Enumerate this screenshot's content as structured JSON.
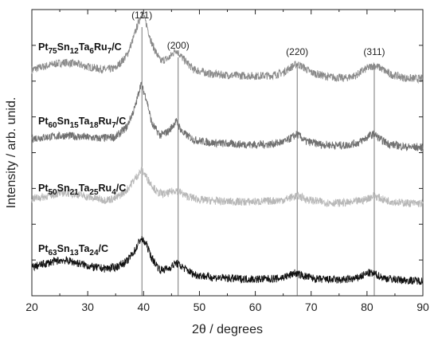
{
  "chart_data": {
    "type": "line",
    "xlabel": "2θ / degrees",
    "ylabel": "Intensity / arb. unid.",
    "xlim": [
      20,
      90
    ],
    "xticks": [
      20,
      30,
      40,
      50,
      60,
      70,
      80,
      90
    ],
    "grid": false,
    "reflections": [
      {
        "label": "(111)",
        "x": 39.7
      },
      {
        "label": "(200)",
        "x": 46.2
      },
      {
        "label": "(220)",
        "x": 67.5
      },
      {
        "label": "(311)",
        "x": 81.3
      }
    ],
    "series": [
      {
        "label_parts": [
          [
            "Pt",
            ""
          ],
          [
            "75",
            "sub"
          ],
          [
            "Sn",
            ""
          ],
          [
            "12",
            "sub"
          ],
          [
            "Ta",
            ""
          ],
          [
            "6",
            "sub"
          ],
          [
            "Ru",
            ""
          ],
          [
            "7",
            "sub"
          ],
          [
            "/C",
            ""
          ]
        ],
        "color": "#8a8a8a",
        "x": [
          20,
          22,
          24,
          26,
          28,
          30,
          33,
          35,
          37,
          38,
          39,
          39.7,
          40.5,
          41.5,
          43,
          44.5,
          45.8,
          47,
          49,
          52,
          56,
          60,
          63,
          65,
          66.5,
          67.5,
          68.5,
          70,
          73,
          76,
          78,
          80,
          81.3,
          82.5,
          84,
          87,
          90
        ],
        "y": [
          0.79,
          0.8,
          0.81,
          0.815,
          0.81,
          0.8,
          0.79,
          0.795,
          0.84,
          0.89,
          0.95,
          0.99,
          0.95,
          0.88,
          0.82,
          0.83,
          0.86,
          0.83,
          0.79,
          0.775,
          0.77,
          0.768,
          0.77,
          0.78,
          0.8,
          0.81,
          0.8,
          0.78,
          0.765,
          0.76,
          0.77,
          0.795,
          0.805,
          0.795,
          0.775,
          0.76,
          0.758
        ]
      },
      {
        "label_parts": [
          [
            "Pt",
            ""
          ],
          [
            "60",
            "sub"
          ],
          [
            "Sn",
            ""
          ],
          [
            "15",
            "sub"
          ],
          [
            "Ta",
            ""
          ],
          [
            "18",
            "sub"
          ],
          [
            "Ru",
            ""
          ],
          [
            "7",
            "sub"
          ],
          [
            "/C",
            ""
          ]
        ],
        "color": "#707070",
        "x": [
          20,
          23,
          26,
          29,
          32,
          35,
          37,
          38.5,
          39.5,
          40.5,
          41.5,
          43,
          44.5,
          45.8,
          47,
          49,
          52,
          56,
          60,
          63,
          65.5,
          67.5,
          69,
          72,
          76,
          78.5,
          80.5,
          81.3,
          82.5,
          84,
          87,
          90
        ],
        "y": [
          0.55,
          0.555,
          0.56,
          0.555,
          0.55,
          0.555,
          0.59,
          0.66,
          0.74,
          0.69,
          0.6,
          0.56,
          0.575,
          0.61,
          0.57,
          0.545,
          0.535,
          0.53,
          0.528,
          0.53,
          0.54,
          0.565,
          0.54,
          0.528,
          0.525,
          0.535,
          0.56,
          0.565,
          0.545,
          0.53,
          0.52,
          0.518
        ]
      },
      {
        "label_parts": [
          [
            "Pt",
            ""
          ],
          [
            "50",
            "sub"
          ],
          [
            "Sn",
            ""
          ],
          [
            "21",
            "sub"
          ],
          [
            "Ta",
            ""
          ],
          [
            "25",
            "sub"
          ],
          [
            "Ru",
            ""
          ],
          [
            "4",
            "sub"
          ],
          [
            "/C",
            ""
          ]
        ],
        "color": "#b8b8b8",
        "x": [
          20,
          22,
          24,
          26,
          28,
          30,
          33,
          35,
          37,
          38.5,
          39.7,
          41,
          42.5,
          44,
          45.8,
          47.5,
          50,
          54,
          58,
          62,
          65,
          67.5,
          69.5,
          73,
          77,
          79.5,
          81.3,
          83,
          86,
          90
        ],
        "y": [
          0.34,
          0.345,
          0.355,
          0.36,
          0.355,
          0.345,
          0.335,
          0.34,
          0.37,
          0.41,
          0.44,
          0.4,
          0.36,
          0.355,
          0.37,
          0.35,
          0.335,
          0.33,
          0.328,
          0.33,
          0.335,
          0.35,
          0.335,
          0.325,
          0.325,
          0.335,
          0.35,
          0.335,
          0.325,
          0.322
        ]
      },
      {
        "label_parts": [
          [
            "Pt",
            ""
          ],
          [
            "63",
            "sub"
          ],
          [
            "Sn",
            ""
          ],
          [
            "13",
            "sub"
          ],
          [
            "Ta",
            ""
          ],
          [
            "24",
            "sub"
          ],
          [
            "/C",
            ""
          ]
        ],
        "color": "#111111",
        "x": [
          20,
          22,
          24,
          25.5,
          27,
          29,
          31,
          33,
          35,
          37,
          38.5,
          39.5,
          40.5,
          41.5,
          43,
          44.5,
          45.8,
          47,
          49,
          52,
          56,
          60,
          64,
          66,
          67,
          68.5,
          71,
          75,
          78,
          80.3,
          81.5,
          83,
          86,
          90
        ],
        "y": [
          0.1,
          0.11,
          0.12,
          0.125,
          0.12,
          0.11,
          0.1,
          0.095,
          0.1,
          0.12,
          0.16,
          0.2,
          0.18,
          0.13,
          0.09,
          0.095,
          0.115,
          0.1,
          0.075,
          0.065,
          0.06,
          0.058,
          0.06,
          0.07,
          0.08,
          0.07,
          0.058,
          0.055,
          0.06,
          0.08,
          0.075,
          0.062,
          0.055,
          0.052
        ]
      }
    ]
  }
}
